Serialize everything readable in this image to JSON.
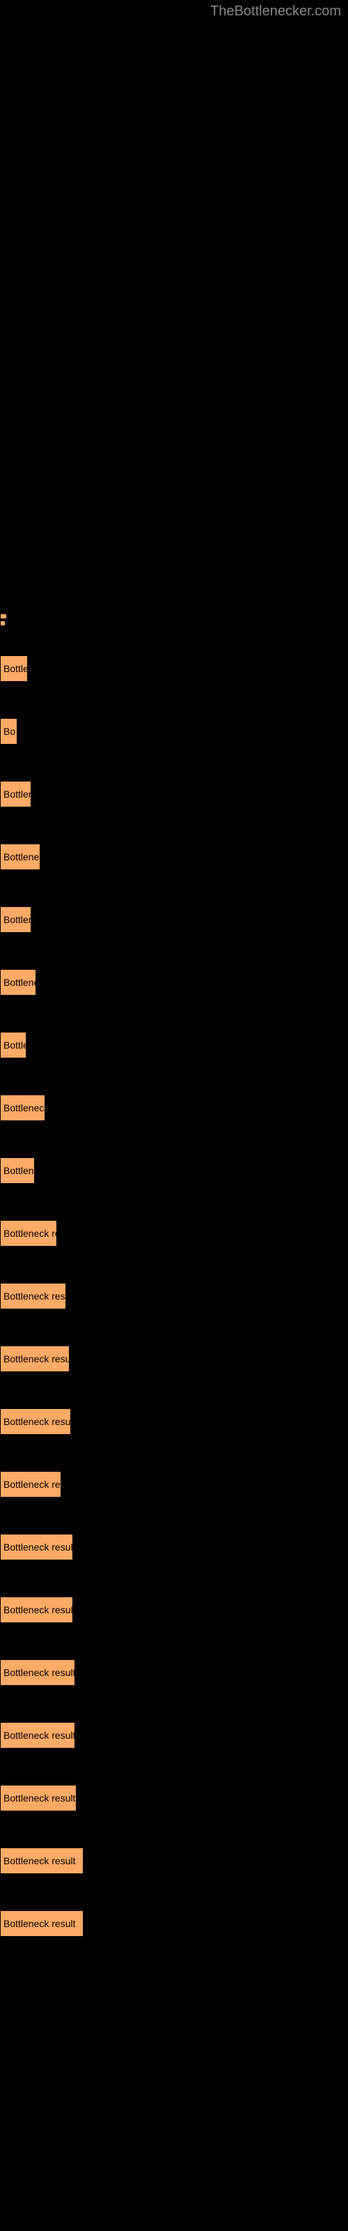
{
  "watermark": "TheBottlenecker.com",
  "chart": {
    "type": "bar",
    "bar_color": "#ffaa66",
    "bar_border_color": "#000000",
    "background_color": "#000000",
    "text_color": "#000000",
    "label_fontsize": 14,
    "tiny_bars": [
      {
        "width": 10
      },
      {
        "width": 8
      }
    ],
    "bars": [
      {
        "label": "Bottle",
        "width": 40
      },
      {
        "label": "Bo",
        "width": 25
      },
      {
        "label": "Bottlen",
        "width": 45
      },
      {
        "label": "Bottleneck",
        "width": 58
      },
      {
        "label": "Bottlen",
        "width": 45
      },
      {
        "label": "Bottlenec",
        "width": 52
      },
      {
        "label": "Bottle",
        "width": 38
      },
      {
        "label": "Bottleneck r",
        "width": 65
      },
      {
        "label": "Bottlene",
        "width": 50
      },
      {
        "label": "Bottleneck resu",
        "width": 82
      },
      {
        "label": "Bottleneck result",
        "width": 95
      },
      {
        "label": "Bottleneck result",
        "width": 100
      },
      {
        "label": "Bottleneck result",
        "width": 102
      },
      {
        "label": "Bottleneck res",
        "width": 88
      },
      {
        "label": "Bottleneck result",
        "width": 105
      },
      {
        "label": "Bottleneck result",
        "width": 105
      },
      {
        "label": "Bottleneck result",
        "width": 108
      },
      {
        "label": "Bottleneck result",
        "width": 108
      },
      {
        "label": "Bottleneck result",
        "width": 110
      },
      {
        "label": "Bottleneck result",
        "width": 120
      },
      {
        "label": "Bottleneck result",
        "width": 120
      }
    ]
  }
}
